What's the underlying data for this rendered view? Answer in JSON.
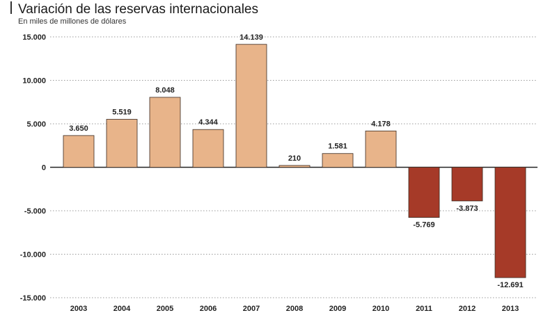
{
  "chart_data": {
    "type": "bar",
    "title": "Variación de las reservas internacionales",
    "subtitle": "En miles de millones de dólares",
    "categories": [
      "2003",
      "2004",
      "2005",
      "2006",
      "2007",
      "2008",
      "2009",
      "2010",
      "2011",
      "2012",
      "2013"
    ],
    "values": [
      3650,
      5519,
      8048,
      4344,
      14139,
      210,
      1581,
      4178,
      -5769,
      -3873,
      -12691
    ],
    "value_labels": [
      "3.650",
      "5.519",
      "8.048",
      "4.344",
      "14.139",
      "210",
      "1.581",
      "4.178",
      "-5.769",
      "-3.873",
      "-12.691"
    ],
    "ylim": [
      -15000,
      15000
    ],
    "yticks": [
      15000,
      10000,
      5000,
      0,
      -5000,
      -10000,
      -15000
    ],
    "ytick_labels": [
      "15.000",
      "10.000",
      "5.000",
      "0",
      "-5.000",
      "-10.000",
      "-15.000"
    ],
    "grid": "horizontal-dotted",
    "colors": {
      "positive": "#E8B48A",
      "negative": "#A63A28",
      "outline": "#3a2a20"
    }
  }
}
